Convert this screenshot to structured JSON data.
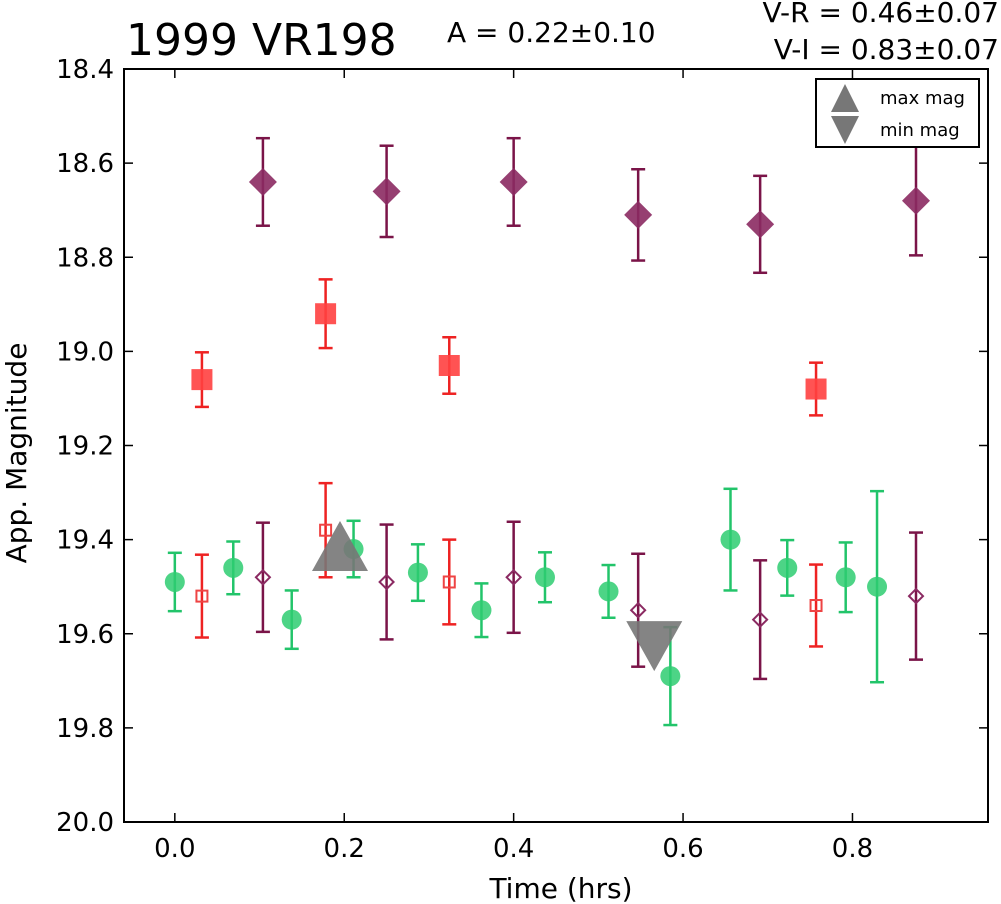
{
  "chart_data": {
    "type": "scatter",
    "title": "1999 VR198",
    "amplitude_text": "A  = 0.22±0.10",
    "color_text_1": "V-R = 0.46±0.07",
    "color_text_2": "V-I  = 0.83±0.07",
    "xlabel": "Time (hrs)",
    "ylabel": "App. Magnitude",
    "xlim": [
      -0.06,
      0.96
    ],
    "ylim": [
      20.0,
      18.4
    ],
    "y_inverted": true,
    "x_ticks": [
      "0.0",
      "0.2",
      "0.4",
      "0.6",
      "0.8"
    ],
    "x_tick_values": [
      0.0,
      0.2,
      0.4,
      0.6,
      0.8
    ],
    "y_ticks": [
      "18.4",
      "18.6",
      "18.8",
      "19.0",
      "19.2",
      "19.4",
      "19.6",
      "19.8",
      "20.0"
    ],
    "y_tick_values": [
      18.4,
      18.6,
      18.8,
      19.0,
      19.2,
      19.4,
      19.6,
      19.8,
      20.0
    ],
    "grid": false,
    "legend_position": "top-right",
    "legend": [
      {
        "label": "max mag",
        "marker": "triangle-up"
      },
      {
        "label": "min mag",
        "marker": "triangle-down"
      }
    ],
    "series": [
      {
        "marker": "circle",
        "filled": true,
        "color": "#2ecc71",
        "error_color": "#22c46a",
        "points": [
          {
            "x": 0.0,
            "y": 19.49,
            "err": 0.062
          },
          {
            "x": 0.069,
            "y": 19.46,
            "err": 0.056
          },
          {
            "x": 0.138,
            "y": 19.57,
            "err": 0.062
          },
          {
            "x": 0.211,
            "y": 19.42,
            "err": 0.06
          },
          {
            "x": 0.287,
            "y": 19.47,
            "err": 0.06
          },
          {
            "x": 0.362,
            "y": 19.55,
            "err": 0.057
          },
          {
            "x": 0.437,
            "y": 19.48,
            "err": 0.053
          },
          {
            "x": 0.512,
            "y": 19.51,
            "err": 0.056
          },
          {
            "x": 0.585,
            "y": 19.69,
            "err": 0.104
          },
          {
            "x": 0.656,
            "y": 19.4,
            "err": 0.108
          },
          {
            "x": 0.723,
            "y": 19.46,
            "err": 0.059
          },
          {
            "x": 0.792,
            "y": 19.48,
            "err": 0.074
          },
          {
            "x": 0.829,
            "y": 19.5,
            "err": 0.203
          }
        ]
      },
      {
        "marker": "square",
        "filled": true,
        "color": "#ff4040",
        "error_color": "#ee2222",
        "points": [
          {
            "x": 0.032,
            "y": 19.06,
            "err": 0.058
          },
          {
            "x": 0.178,
            "y": 18.92,
            "err": 0.073
          },
          {
            "x": 0.324,
            "y": 19.03,
            "err": 0.06
          },
          {
            "x": 0.757,
            "y": 19.08,
            "err": 0.056
          }
        ]
      },
      {
        "marker": "square",
        "filled": false,
        "color": "#ee4444",
        "error_color": "#ee2222",
        "points": [
          {
            "x": 0.032,
            "y": 19.52,
            "err": 0.088
          },
          {
            "x": 0.178,
            "y": 19.38,
            "err": 0.1
          },
          {
            "x": 0.324,
            "y": 19.49,
            "err": 0.09
          },
          {
            "x": 0.757,
            "y": 19.54,
            "err": 0.087
          }
        ]
      },
      {
        "marker": "diamond",
        "filled": true,
        "color": "#8b2a62",
        "error_color": "#7a1448",
        "points": [
          {
            "x": 0.104,
            "y": 18.64,
            "err": 0.093
          },
          {
            "x": 0.25,
            "y": 18.66,
            "err": 0.097
          },
          {
            "x": 0.4,
            "y": 18.64,
            "err": 0.093
          },
          {
            "x": 0.547,
            "y": 18.71,
            "err": 0.097
          },
          {
            "x": 0.691,
            "y": 18.73,
            "err": 0.103
          },
          {
            "x": 0.875,
            "y": 18.68,
            "err": 0.116
          }
        ]
      },
      {
        "marker": "diamond",
        "filled": false,
        "color": "#8b2a62",
        "error_color": "#7a1448",
        "points": [
          {
            "x": 0.104,
            "y": 19.48,
            "err": 0.116
          },
          {
            "x": 0.25,
            "y": 19.49,
            "err": 0.122
          },
          {
            "x": 0.4,
            "y": 19.48,
            "err": 0.118
          },
          {
            "x": 0.547,
            "y": 19.55,
            "err": 0.12
          },
          {
            "x": 0.691,
            "y": 19.57,
            "err": 0.126
          },
          {
            "x": 0.875,
            "y": 19.52,
            "err": 0.135
          }
        ]
      }
    ],
    "extrema": [
      {
        "type": "max",
        "x": 0.195,
        "y": 19.42,
        "color": "#777777"
      },
      {
        "type": "min",
        "x": 0.566,
        "y": 19.62,
        "color": "#777777"
      }
    ]
  }
}
